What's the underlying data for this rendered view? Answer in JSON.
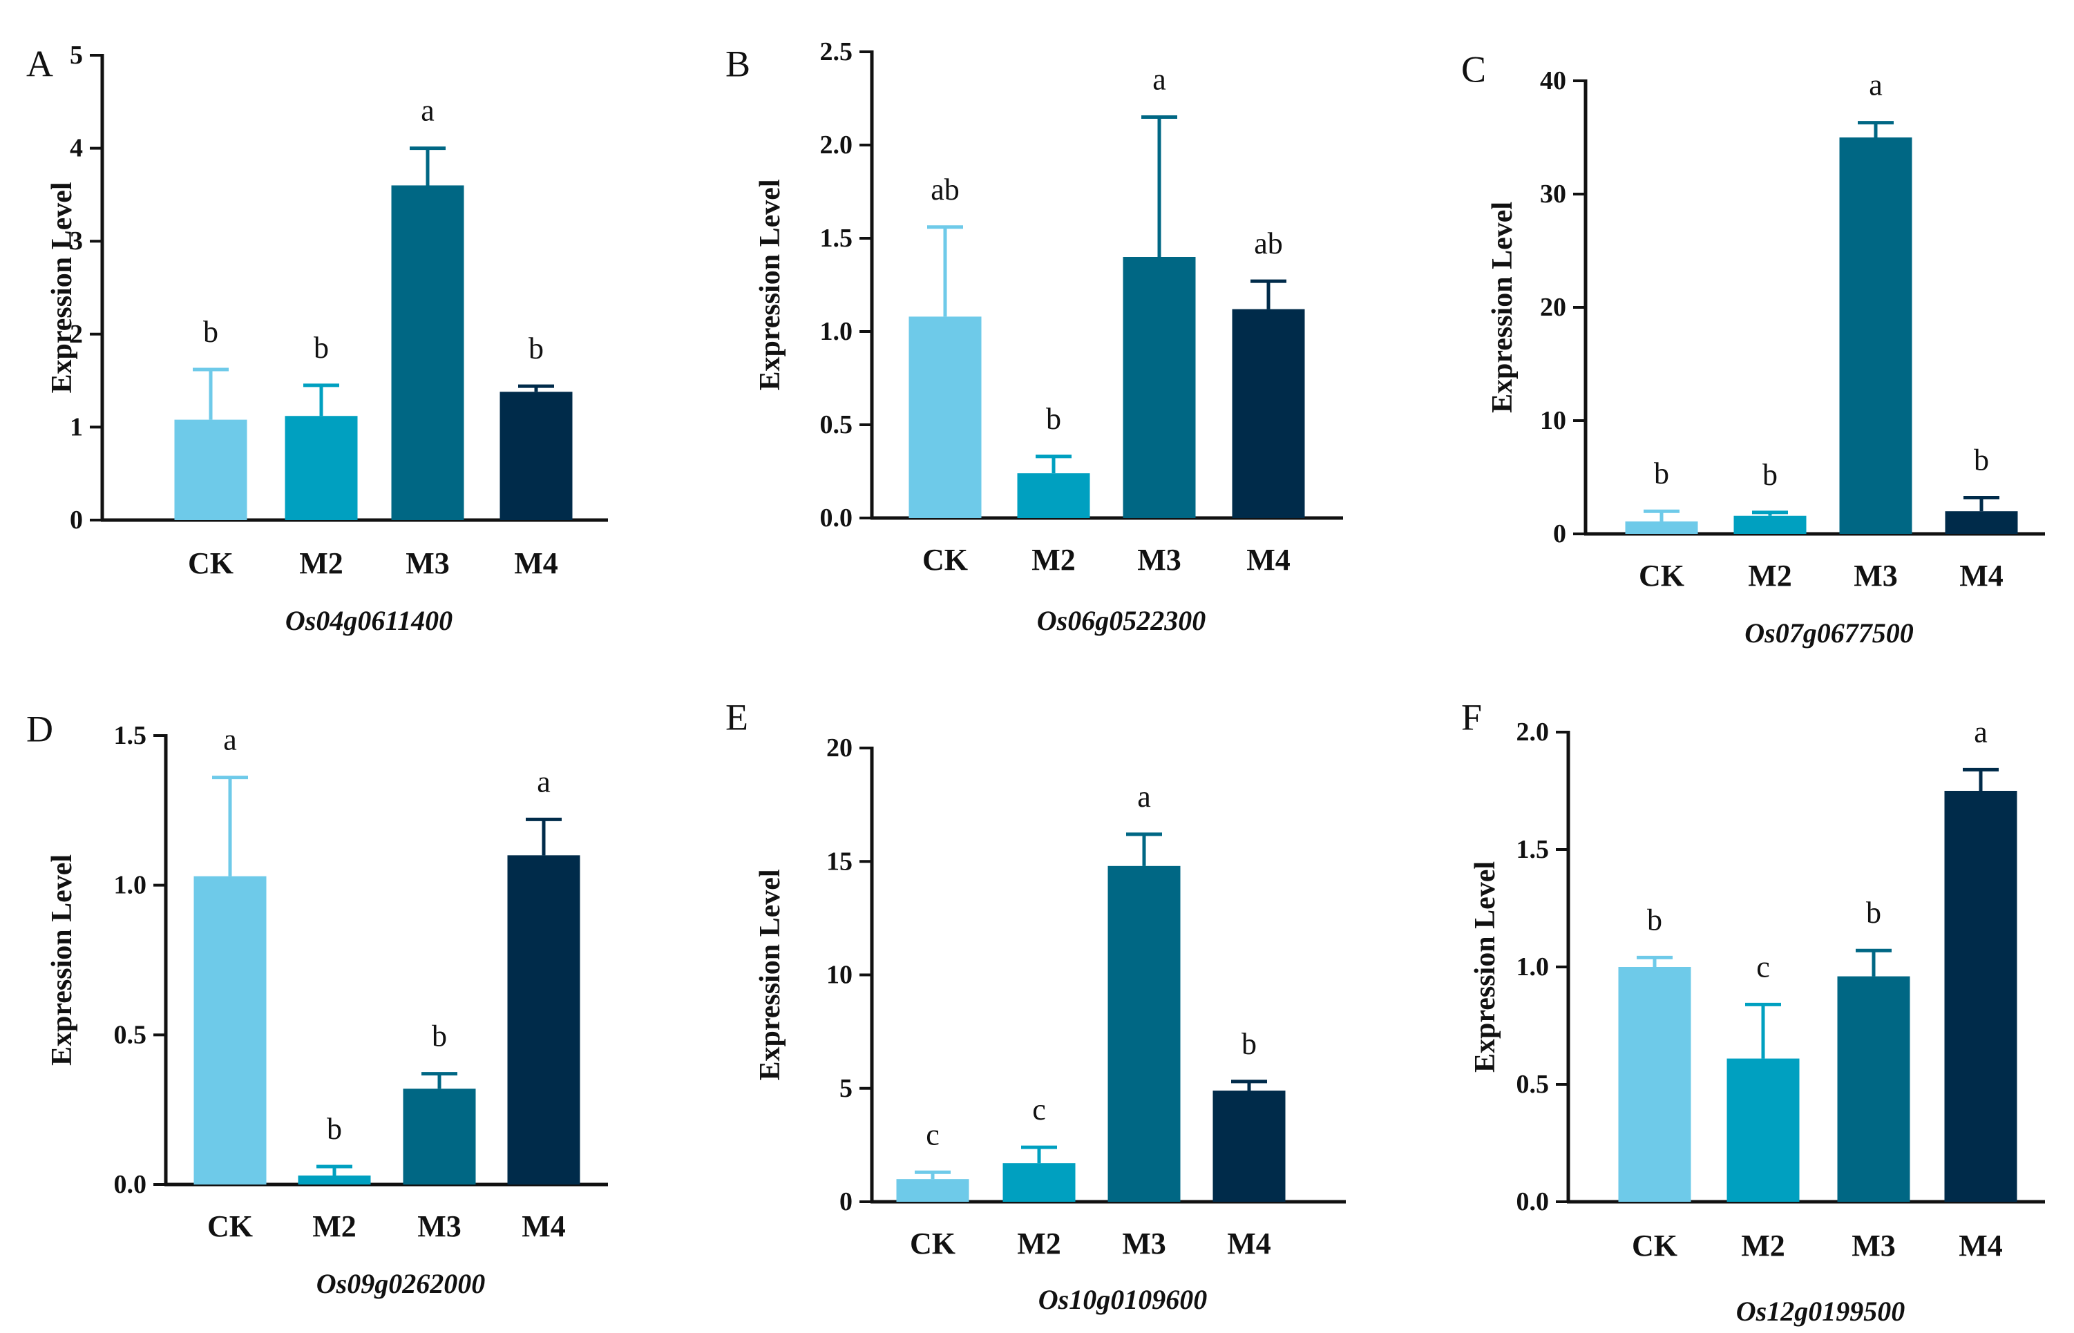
{
  "colors": {
    "CK": "#6ecae9",
    "M2": "#00a0c0",
    "M3": "#006784",
    "M4": "#002b4a",
    "axis": "#111111"
  },
  "chart_data": [
    {
      "panel": "A",
      "type": "bar",
      "gene": "Os04g0611400",
      "ylabel": "Expression Level",
      "ylim": [
        0,
        5
      ],
      "yticks": [
        "0",
        "1",
        "2",
        "3",
        "4",
        "5"
      ],
      "categories": [
        "CK",
        "M2",
        "M3",
        "M4"
      ],
      "values": [
        1.08,
        1.12,
        3.6,
        1.38
      ],
      "errors": [
        0.54,
        0.33,
        0.4,
        0.06
      ],
      "letters": [
        "b",
        "b",
        "a",
        "b"
      ]
    },
    {
      "panel": "B",
      "type": "bar",
      "gene": "Os06g0522300",
      "ylabel": "Expression Level",
      "ylim": [
        0,
        2.5
      ],
      "yticks": [
        "0.0",
        "0.5",
        "1.0",
        "1.5",
        "2.0",
        "2.5"
      ],
      "categories": [
        "CK",
        "M2",
        "M3",
        "M4"
      ],
      "values": [
        1.08,
        0.24,
        1.4,
        1.12
      ],
      "errors": [
        0.48,
        0.09,
        0.75,
        0.15
      ],
      "letters": [
        "ab",
        "b",
        "a",
        "ab"
      ]
    },
    {
      "panel": "C",
      "type": "bar",
      "gene": "Os07g0677500",
      "ylabel": "Expression Level",
      "ylim": [
        0,
        40
      ],
      "yticks": [
        "0",
        "10",
        "20",
        "30",
        "40"
      ],
      "categories": [
        "CK",
        "M2",
        "M3",
        "M4"
      ],
      "values": [
        1.1,
        1.6,
        35,
        2.0
      ],
      "errors": [
        0.9,
        0.3,
        1.3,
        1.2
      ],
      "letters": [
        "b",
        "b",
        "a",
        "b"
      ]
    },
    {
      "panel": "D",
      "type": "bar",
      "gene": "Os09g0262000",
      "ylabel": "Expression Level",
      "ylim": [
        0,
        1.5
      ],
      "yticks": [
        "0.0",
        "0.5",
        "1.0",
        "1.5"
      ],
      "categories": [
        "CK",
        "M2",
        "M3",
        "M4"
      ],
      "values": [
        1.03,
        0.03,
        0.32,
        1.1
      ],
      "errors": [
        0.33,
        0.03,
        0.05,
        0.12
      ],
      "letters": [
        "a",
        "b",
        "b",
        "a"
      ]
    },
    {
      "panel": "E",
      "type": "bar",
      "gene": "Os10g0109600",
      "ylabel": "Expression Level",
      "ylim": [
        0,
        20
      ],
      "yticks": [
        "0",
        "5",
        "10",
        "15",
        "20"
      ],
      "categories": [
        "CK",
        "M2",
        "M3",
        "M4"
      ],
      "values": [
        1.0,
        1.7,
        14.8,
        4.9
      ],
      "errors": [
        0.3,
        0.7,
        1.4,
        0.4
      ],
      "letters": [
        "c",
        "c",
        "a",
        "b"
      ]
    },
    {
      "panel": "F",
      "type": "bar",
      "gene": "Os12g0199500",
      "ylabel": "Expression Level",
      "ylim": [
        0,
        2.0
      ],
      "yticks": [
        "0.0",
        "0.5",
        "1.0",
        "1.5",
        "2.0"
      ],
      "categories": [
        "CK",
        "M2",
        "M3",
        "M4"
      ],
      "values": [
        1.0,
        0.61,
        0.96,
        1.75
      ],
      "errors": [
        0.04,
        0.23,
        0.11,
        0.09
      ],
      "letters": [
        "b",
        "c",
        "b",
        "a"
      ]
    }
  ]
}
